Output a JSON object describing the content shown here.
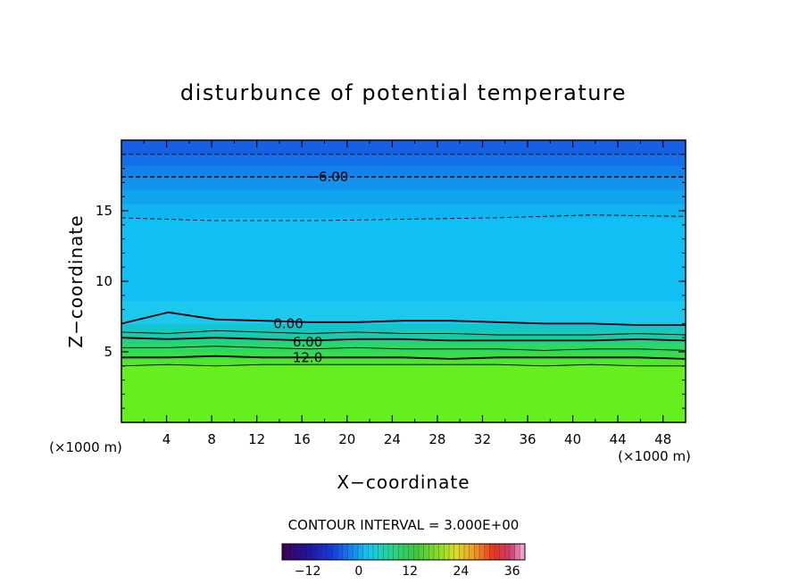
{
  "chart_data": {
    "type": "heatmap",
    "title": "disturbunce of potential temperature",
    "xlabel": "X−coordinate",
    "ylabel": "Z−coordinate",
    "x_unit_left": "(×1000 m)",
    "x_unit_right": "(×1000 m)",
    "xlim": [
      0,
      50
    ],
    "ylim": [
      0,
      20
    ],
    "x_ticks": [
      4,
      8,
      12,
      16,
      20,
      24,
      28,
      32,
      36,
      40,
      44,
      48
    ],
    "y_ticks": [
      5,
      10,
      15
    ],
    "contour_interval_text": "CONTOUR INTERVAL = 3.000E+00",
    "contour_labels": [
      {
        "text": "−6.00",
        "x": 18.3,
        "z": 17.4
      },
      {
        "text": "0.00",
        "x": 14.8,
        "z": 7.0
      },
      {
        "text": "6.00",
        "x": 16.5,
        "z": 5.7
      },
      {
        "text": "12.0",
        "x": 16.5,
        "z": 4.6
      }
    ],
    "colorbar": {
      "range": [
        -18,
        39
      ],
      "ticks": [
        -12,
        0,
        12,
        24,
        36
      ]
    },
    "field_levels": [
      {
        "z_min": 0.0,
        "z_max": 4.0,
        "value": 14,
        "color": "#66ee1f"
      },
      {
        "z_min": 4.0,
        "z_max": 4.5,
        "value": 13,
        "color": "#4fe62d"
      },
      {
        "z_min": 4.5,
        "z_max": 5.0,
        "value": 11,
        "color": "#38de44"
      },
      {
        "z_min": 5.0,
        "z_max": 5.6,
        "value": 9,
        "color": "#2ad862"
      },
      {
        "z_min": 5.6,
        "z_max": 6.0,
        "value": 6,
        "color": "#22d08a"
      },
      {
        "z_min": 6.0,
        "z_max": 6.6,
        "value": 4,
        "color": "#18cab0"
      },
      {
        "z_min": 6.6,
        "z_max": 7.0,
        "value": 2,
        "color": "#12c4d2"
      },
      {
        "z_min": 7.0,
        "z_max": 8.6,
        "value": 0,
        "color": "#1cc8ee"
      },
      {
        "z_min": 8.6,
        "z_max": 14.5,
        "value": -2,
        "color": "#10c0f4"
      },
      {
        "z_min": 14.5,
        "z_max": 15.5,
        "value": -3,
        "color": "#10b4f0"
      },
      {
        "z_min": 15.5,
        "z_max": 16.5,
        "value": -4,
        "color": "#10a4ee"
      },
      {
        "z_min": 16.5,
        "z_max": 17.4,
        "value": -5,
        "color": "#1294ec"
      },
      {
        "z_min": 17.4,
        "z_max": 18.2,
        "value": -6,
        "color": "#1282ea"
      },
      {
        "z_min": 18.2,
        "z_max": 19.0,
        "value": -7,
        "color": "#1470e6"
      },
      {
        "z_min": 19.0,
        "z_max": 20.0,
        "value": -8,
        "color": "#1660e2"
      }
    ],
    "contours": [
      {
        "value": -9,
        "style": "dashed",
        "z": [
          19.0,
          19.0
        ]
      },
      {
        "value": -6,
        "style": "dashed",
        "z": [
          17.4,
          17.4
        ]
      },
      {
        "value": -3,
        "style": "dashed",
        "z": [
          14.5,
          14.3,
          14.3,
          14.4,
          14.5,
          14.7,
          14.6
        ]
      },
      {
        "value": 0,
        "style": "bold",
        "z": [
          7.0,
          7.8,
          7.3,
          7.2,
          7.1,
          7.1,
          7.2,
          7.2,
          7.1,
          7.0,
          7.0,
          6.9,
          6.9
        ]
      },
      {
        "value": 3,
        "style": "thin",
        "z": [
          6.4,
          6.3,
          6.5,
          6.4,
          6.3,
          6.4,
          6.3,
          6.3,
          6.2,
          6.2,
          6.2,
          6.3,
          6.2
        ]
      },
      {
        "value": 6,
        "style": "bold",
        "z": [
          6.0,
          5.9,
          6.0,
          5.9,
          5.8,
          5.9,
          5.9,
          5.8,
          5.8,
          5.8,
          5.8,
          5.9,
          5.8
        ]
      },
      {
        "value": 9,
        "style": "thin",
        "z": [
          5.3,
          5.3,
          5.4,
          5.3,
          5.2,
          5.3,
          5.2,
          5.2,
          5.2,
          5.1,
          5.2,
          5.2,
          5.1
        ]
      },
      {
        "value": 12,
        "style": "bold",
        "z": [
          4.6,
          4.6,
          4.7,
          4.6,
          4.6,
          4.6,
          4.6,
          4.5,
          4.6,
          4.6,
          4.6,
          4.6,
          4.5
        ]
      },
      {
        "value": 15,
        "style": "thin",
        "z": [
          4.0,
          4.1,
          4.0,
          4.1,
          4.1,
          4.1,
          4.1,
          4.1,
          4.1,
          4.0,
          4.1,
          4.0,
          4.0
        ]
      }
    ]
  }
}
